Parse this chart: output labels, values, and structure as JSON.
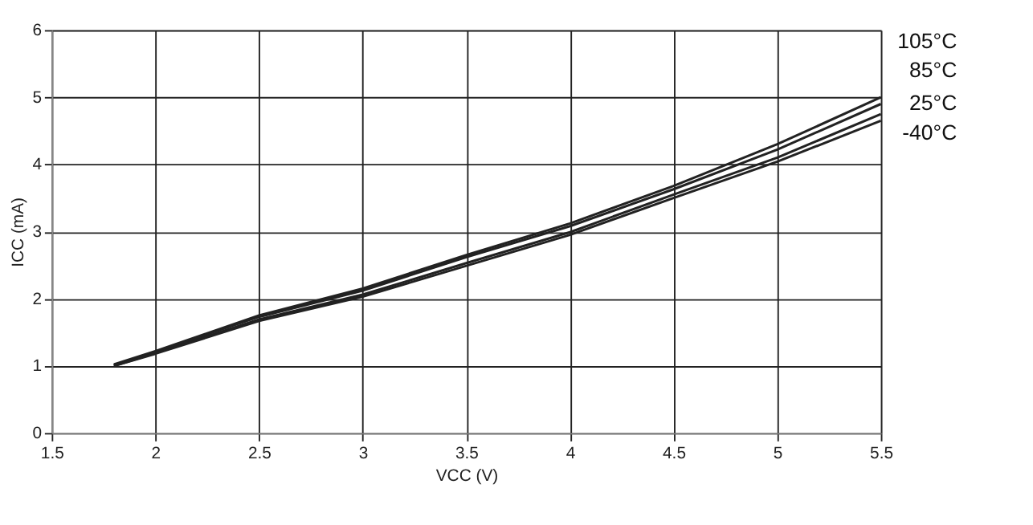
{
  "chart_data": {
    "type": "line",
    "xlabel": "VCC (V)",
    "ylabel": "ICC (mA)",
    "xlim": [
      1.5,
      5.5
    ],
    "xticks": [
      1.5,
      2,
      2.5,
      3,
      3.5,
      4,
      4.5,
      5,
      5.5
    ],
    "ylim": [
      0,
      6
    ],
    "yticks": [
      0,
      1,
      2,
      3,
      4,
      5,
      6
    ],
    "grid": true,
    "legend": false,
    "marker": "none",
    "line_style": "solid",
    "x": [
      1.8,
      2,
      2.5,
      3,
      3.5,
      4,
      4.5,
      5,
      5.5
    ],
    "series": [
      {
        "name": "105°C",
        "color": "#222222",
        "values": [
          1.02,
          1.22,
          1.75,
          2.15,
          2.65,
          3.12,
          3.68,
          4.3,
          5.0
        ]
      },
      {
        "name": "85°C",
        "color": "#222222",
        "values": [
          1.01,
          1.21,
          1.73,
          2.12,
          2.62,
          3.08,
          3.63,
          4.22,
          4.9
        ]
      },
      {
        "name": "25°C",
        "color": "#222222",
        "values": [
          1.0,
          1.19,
          1.69,
          2.06,
          2.53,
          2.99,
          3.55,
          4.1,
          4.75
        ]
      },
      {
        "name": "-40°C",
        "color": "#222222",
        "values": [
          1.0,
          1.18,
          1.67,
          2.03,
          2.49,
          2.95,
          3.5,
          4.04,
          4.65
        ]
      }
    ]
  }
}
